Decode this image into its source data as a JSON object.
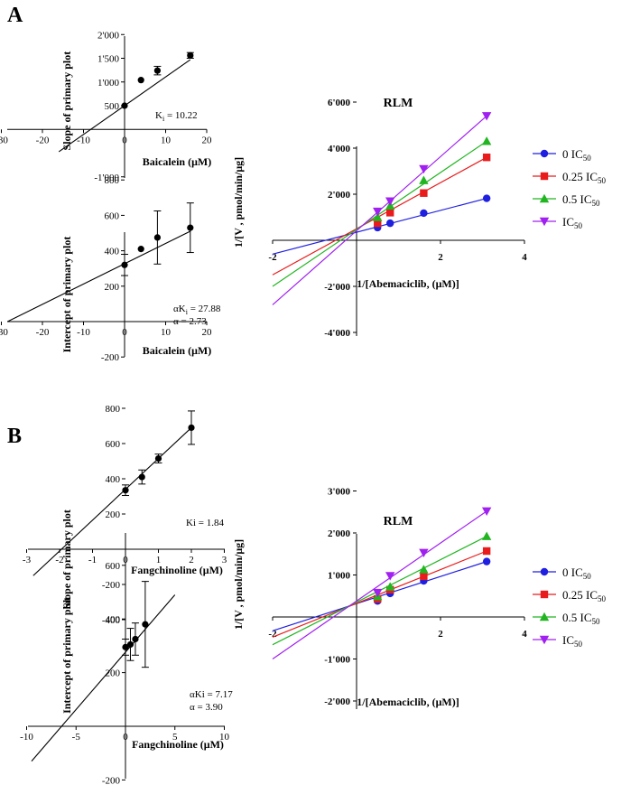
{
  "panels": {
    "A_label": "A",
    "B_label": "B"
  },
  "colors": {
    "zero": "#1f1fe0",
    "quarter": "#e81c1c",
    "half": "#22b522",
    "full": "#a020f0",
    "axis": "#000000"
  },
  "chart_data": [
    {
      "id": "A_slope",
      "type": "scatter",
      "xlabel": "Baicalein (μM)",
      "ylabel": "Slope of primary plot",
      "xlim": [
        -30,
        20
      ],
      "ylim": [
        -1000,
        2000
      ],
      "xticks": [
        "-30",
        "-20",
        "-10",
        "0",
        "10",
        "20"
      ],
      "yticks": [
        "-1'000",
        "500",
        "1'000",
        "1'500",
        "2'000"
      ],
      "ytick_values": [
        -1000,
        500,
        1000,
        1500,
        2000
      ],
      "annotation": "Ki = 10.22",
      "annotation_sub": "i",
      "points": [
        {
          "x": 0,
          "y": 500,
          "err": 0
        },
        {
          "x": 4,
          "y": 1040,
          "err": 0
        },
        {
          "x": 8,
          "y": 1240,
          "err": 90
        },
        {
          "x": 16,
          "y": 1560,
          "err": 60
        }
      ],
      "fit": {
        "x": [
          -16,
          16
        ],
        "y": [
          -470,
          1470
        ]
      }
    },
    {
      "id": "A_intercept",
      "type": "scatter",
      "xlabel": "Baicalein (μM)",
      "ylabel": "Intercept of primary plot",
      "xlim": [
        -30,
        20
      ],
      "ylim": [
        -200,
        800
      ],
      "xticks": [
        "-30",
        "-20",
        "-10",
        "0",
        "10",
        "20"
      ],
      "yticks": [
        "-200",
        "200",
        "400",
        "600",
        "800"
      ],
      "ytick_values": [
        -200,
        200,
        400,
        600,
        800
      ],
      "annotation": "αKi = 27.88",
      "annotation_sub": "i",
      "annotation2": "α = 2.73",
      "points": [
        {
          "x": 0,
          "y": 320,
          "err": 60
        },
        {
          "x": 4,
          "y": 410,
          "err": 0
        },
        {
          "x": 8,
          "y": 475,
          "err": 150
        },
        {
          "x": 16,
          "y": 530,
          "err": 140
        }
      ],
      "fit": {
        "x": [
          -28.5,
          16
        ],
        "y": [
          0,
          510
        ]
      }
    },
    {
      "id": "A_lineweaver",
      "type": "line",
      "title": "RLM",
      "xlabel": "1/[Abemaciclib, (μM)]",
      "ylabel": "1/[V , pmol/min/μg]",
      "xlim": [
        -2,
        4
      ],
      "ylim": [
        -4000,
        6000
      ],
      "xticks": [
        "-2",
        "2",
        "4"
      ],
      "xtick_values": [
        -2,
        2,
        4
      ],
      "yticks": [
        "-4'000",
        "-2'000",
        "2'000",
        "4'000",
        "6'000"
      ],
      "ytick_values": [
        -4000,
        -2000,
        2000,
        4000,
        6000
      ],
      "x": [
        0.5,
        0.8,
        1.6,
        3.1
      ],
      "series": [
        {
          "name": "0 IC",
          "sub": "50",
          "color_key": "zero",
          "marker": "circle",
          "values": [
            550,
            740,
            1180,
            1820
          ],
          "line": [
            [
              -2,
              -600
            ],
            [
              3.1,
              1820
            ]
          ]
        },
        {
          "name": "0.25 IC",
          "sub": "50",
          "color_key": "quarter",
          "marker": "square",
          "values": [
            740,
            1200,
            2050,
            3600
          ],
          "line": [
            [
              -2,
              -1500
            ],
            [
              3.1,
              3600
            ]
          ]
        },
        {
          "name": "0.5 IC",
          "sub": "50",
          "color_key": "half",
          "marker": "triangle-up",
          "values": [
            1000,
            1500,
            2600,
            4300
          ],
          "line": [
            [
              -2,
              -2000
            ],
            [
              3.1,
              4300
            ]
          ]
        },
        {
          "name": "IC",
          "sub": "50",
          "color_key": "full",
          "marker": "triangle-down",
          "values": [
            1250,
            1700,
            3100,
            5400
          ],
          "line": [
            [
              -2,
              -2800
            ],
            [
              3.1,
              5400
            ]
          ]
        }
      ]
    },
    {
      "id": "B_slope",
      "type": "scatter",
      "xlabel": "Fangchinoline (μM)",
      "ylabel": "Slope of primary plot",
      "xlim": [
        -3,
        3
      ],
      "ylim": [
        -400,
        800
      ],
      "xticks": [
        "-3",
        "-2",
        "-1",
        "0",
        "1",
        "2",
        "3"
      ],
      "yticks": [
        "-400",
        "-200",
        "200",
        "400",
        "600",
        "800"
      ],
      "ytick_values": [
        -400,
        -200,
        200,
        400,
        600,
        800
      ],
      "annotation": "Ki = 1.84",
      "annotation_sub": "",
      "points": [
        {
          "x": 0,
          "y": 335,
          "err": 30
        },
        {
          "x": 0.5,
          "y": 410,
          "err": 40
        },
        {
          "x": 1,
          "y": 515,
          "err": 25
        },
        {
          "x": 2,
          "y": 690,
          "err": 95
        }
      ],
      "fit": {
        "x": [
          -2.8,
          2
        ],
        "y": [
          -150,
          690
        ]
      }
    },
    {
      "id": "B_intercept",
      "type": "scatter",
      "xlabel": "Fangchinoline (μM)",
      "ylabel": "Intercept of primary plot",
      "xlim": [
        -10,
        10
      ],
      "ylim": [
        -200,
        600
      ],
      "xticks": [
        "-10",
        "-5",
        "0",
        "5",
        "10"
      ],
      "yticks": [
        "-200",
        "200",
        "400",
        "600"
      ],
      "ytick_values": [
        -200,
        200,
        400,
        600
      ],
      "annotation": "αKi = 7.17",
      "annotation_sub": "",
      "annotation2": "α = 3.90",
      "points": [
        {
          "x": 0,
          "y": 295,
          "err": 30
        },
        {
          "x": 0.5,
          "y": 305,
          "err": 60
        },
        {
          "x": 1,
          "y": 325,
          "err": 60
        },
        {
          "x": 2,
          "y": 380,
          "err": 160
        }
      ],
      "fit": {
        "x": [
          -9.5,
          5
        ],
        "y": [
          -130,
          490
        ]
      }
    },
    {
      "id": "B_lineweaver",
      "type": "line",
      "title": "RLM",
      "xlabel": "1/[Abemaciclib, (μM)]",
      "ylabel": "1/[V , pmol/min/μg]",
      "xlim": [
        -2,
        4
      ],
      "ylim": [
        -2000,
        3000
      ],
      "xticks": [
        "-2",
        "2",
        "4"
      ],
      "xtick_values": [
        -2,
        2,
        4
      ],
      "yticks": [
        "-2'000",
        "-1'000",
        "1'000",
        "2'000",
        "3'000"
      ],
      "ytick_values": [
        -2000,
        -1000,
        1000,
        2000,
        3000
      ],
      "x": [
        0.5,
        0.8,
        1.6,
        3.1
      ],
      "series": [
        {
          "name": "0 IC",
          "sub": "50",
          "color_key": "zero",
          "marker": "circle",
          "values": [
            380,
            560,
            860,
            1320
          ],
          "line": [
            [
              -2,
              -330
            ],
            [
              3.1,
              1320
            ]
          ]
        },
        {
          "name": "0.25 IC",
          "sub": "50",
          "color_key": "quarter",
          "marker": "square",
          "values": [
            430,
            650,
            970,
            1570
          ],
          "line": [
            [
              -2,
              -480
            ],
            [
              3.1,
              1570
            ]
          ]
        },
        {
          "name": "0.5 IC",
          "sub": "50",
          "color_key": "half",
          "marker": "triangle-up",
          "values": [
            490,
            720,
            1130,
            1920
          ],
          "line": [
            [
              -2,
              -660
            ],
            [
              3.1,
              1920
            ]
          ]
        },
        {
          "name": "IC",
          "sub": "50",
          "color_key": "full",
          "marker": "triangle-down",
          "values": [
            580,
            980,
            1530,
            2520
          ],
          "line": [
            [
              -2,
              -1000
            ],
            [
              3.1,
              2520
            ]
          ]
        }
      ]
    }
  ]
}
